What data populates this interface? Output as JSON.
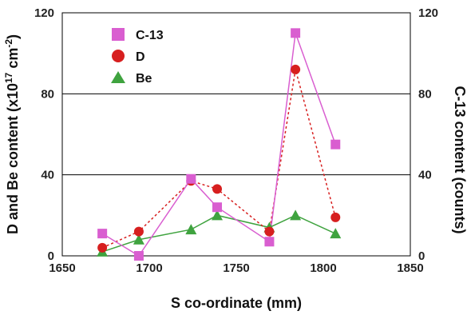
{
  "chart_data": {
    "type": "line",
    "xlabel": "S co-ordinate (mm)",
    "ylabel_left_parts": [
      "D and Be content (x10",
      "17",
      " cm",
      "-2",
      ")"
    ],
    "ylabel_right": "C-13 content (counts)",
    "xlim": [
      1650,
      1850
    ],
    "ylim_left": [
      0,
      120
    ],
    "ylim_right": [
      0,
      120
    ],
    "x_ticks": [
      "1650",
      "1700",
      "1750",
      "1800",
      "1850"
    ],
    "y_ticks_left": [
      "0",
      "40",
      "80",
      "120"
    ],
    "y_ticks_right": [
      "0",
      "40",
      "80",
      "120"
    ],
    "grid": "horizontal",
    "legend_position": "top-left",
    "series": [
      {
        "name": "C-13",
        "axis": "right",
        "marker": "square",
        "line_style": "solid",
        "color": "#D95ED0",
        "points": [
          [
            1673,
            11
          ],
          [
            1694,
            0
          ],
          [
            1724,
            38
          ],
          [
            1739,
            24
          ],
          [
            1769,
            7
          ],
          [
            1784,
            110
          ],
          [
            1807,
            55
          ]
        ]
      },
      {
        "name": "D",
        "axis": "left",
        "marker": "circle",
        "line_style": "dashed",
        "color": "#D71F1F",
        "points": [
          [
            1673,
            4
          ],
          [
            1694,
            12
          ],
          [
            1724,
            37
          ],
          [
            1739,
            33
          ],
          [
            1769,
            12
          ],
          [
            1784,
            92
          ],
          [
            1807,
            19
          ]
        ]
      },
      {
        "name": "Be",
        "axis": "left",
        "marker": "triangle",
        "line_style": "solid",
        "color": "#3FA33F",
        "points": [
          [
            1673,
            2
          ],
          [
            1694,
            8
          ],
          [
            1724,
            13
          ],
          [
            1739,
            20
          ],
          [
            1769,
            14
          ],
          [
            1784,
            20
          ],
          [
            1807,
            11
          ]
        ]
      }
    ]
  }
}
